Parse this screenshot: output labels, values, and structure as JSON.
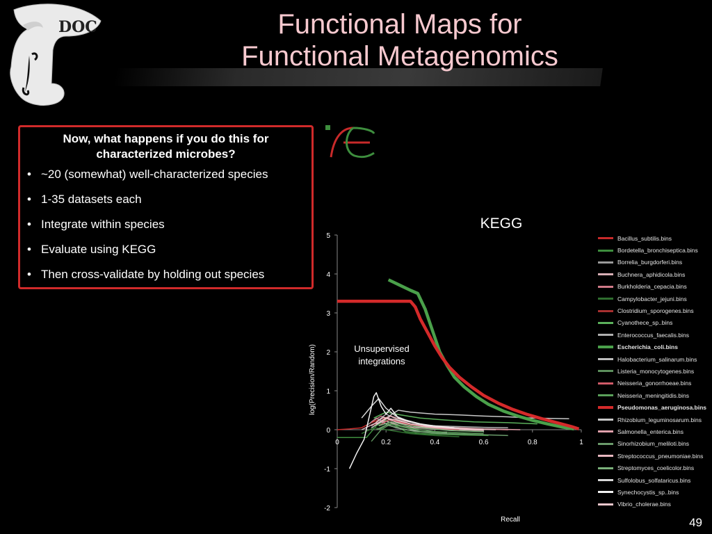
{
  "slide": {
    "title_line1": "Functional Maps for",
    "title_line2": "Functional Metagenomics",
    "page_number": "49",
    "logo_text": "DOC"
  },
  "question_box": {
    "heading": "Now, what happens if you do this for characterized microbes?",
    "bullets": [
      "~20 (somewhat) well-characterized species",
      "1-35 datasets each",
      "Integrate within species",
      "Evaluate using KEGG",
      "Then cross-validate by holding out species"
    ]
  },
  "colors": {
    "title": "#f7c9cf",
    "box_border": "#d02a2a",
    "red": "#d42a2a",
    "green": "#4aa04a"
  },
  "chart_data": {
    "type": "line",
    "title": "KEGG",
    "xlabel": "Recall",
    "ylabel": "log(Precision/Random)",
    "xlim": [
      0,
      1
    ],
    "ylim": [
      -2,
      5
    ],
    "xticks": [
      "0",
      "0.2",
      "0.4",
      "0.6",
      "0.8",
      "1"
    ],
    "yticks": [
      "5",
      "4",
      "3",
      "2",
      "1",
      "0",
      "-1",
      "-2"
    ],
    "annotation": "Unsupervised integrations",
    "series": [
      {
        "name": "Bacillus_subtilis.bins",
        "color": "#c82a2a",
        "width": 1.5,
        "x": [
          0.0,
          0.05,
          0.1,
          0.14,
          0.18,
          0.22,
          0.26,
          0.3,
          0.36,
          0.42,
          0.48,
          0.55,
          0.62,
          0.7
        ],
        "y": [
          0.0,
          0.02,
          0.05,
          0.18,
          0.28,
          0.35,
          0.2,
          0.1,
          0.08,
          0.05,
          0.03,
          0.02,
          0.01,
          0.0
        ]
      },
      {
        "name": "Bordetella_bronchiseptica.bins",
        "color": "#3e8e3e",
        "width": 1.5,
        "x": [
          0.0,
          0.12,
          0.16,
          0.2,
          0.24,
          0.28,
          0.34,
          0.42,
          0.52,
          0.62
        ],
        "y": [
          -0.2,
          -0.2,
          0.1,
          0.25,
          0.1,
          -0.05,
          -0.1,
          -0.12,
          -0.14,
          -0.15
        ]
      },
      {
        "name": "Borrelia_burgdorferi.bins",
        "color": "#9a9a9a",
        "width": 1.5,
        "x": [
          0.12,
          0.16,
          0.2,
          0.24,
          0.3,
          0.36,
          0.45
        ],
        "y": [
          0.1,
          0.3,
          0.15,
          0.05,
          -0.02,
          -0.05,
          -0.06
        ]
      },
      {
        "name": "Buchnera_aphidicola.bins",
        "color": "#d9b0b6",
        "width": 1.5,
        "x": [
          0.1,
          0.15,
          0.2,
          0.26,
          0.32,
          0.4,
          0.5,
          0.6
        ],
        "y": [
          0.0,
          0.15,
          0.22,
          0.1,
          0.05,
          0.02,
          0.0,
          -0.02
        ]
      },
      {
        "name": "Burkholderia_cepacia.bins",
        "color": "#d07a88",
        "width": 1.5,
        "x": [
          0.14,
          0.18,
          0.22,
          0.28,
          0.34,
          0.42,
          0.55,
          0.7
        ],
        "y": [
          0.2,
          0.35,
          0.25,
          0.15,
          0.08,
          0.05,
          0.02,
          0.0
        ]
      },
      {
        "name": "Campylobacter_jejuni.bins",
        "color": "#2f6e2f",
        "width": 1.5,
        "x": [
          0.1,
          0.15,
          0.2,
          0.3,
          0.4,
          0.5
        ],
        "y": [
          -0.1,
          0.05,
          0.0,
          -0.1,
          -0.15,
          -0.18
        ]
      },
      {
        "name": "Clostridium_sporogenes.bins",
        "color": "#a83030",
        "width": 1.5,
        "x": [
          0.15,
          0.2,
          0.25,
          0.3,
          0.38,
          0.48
        ],
        "y": [
          0.1,
          0.3,
          0.2,
          0.12,
          0.05,
          0.02
        ]
      },
      {
        "name": "Cyanothece_sp..bins",
        "color": "#5bb05b",
        "width": 1.5,
        "x": [
          0.15,
          0.2,
          0.26,
          0.34,
          0.44,
          0.56,
          0.7,
          0.82
        ],
        "y": [
          0.3,
          0.45,
          0.38,
          0.3,
          0.25,
          0.2,
          0.18,
          0.15
        ]
      },
      {
        "name": "Enterococcus_faecalis.bins",
        "color": "#b0b0b0",
        "width": 1.5,
        "x": [
          0.16,
          0.2,
          0.25,
          0.3,
          0.4,
          0.5,
          0.6,
          0.7
        ],
        "y": [
          0.2,
          0.4,
          0.25,
          0.15,
          0.1,
          0.08,
          0.06,
          0.05
        ]
      },
      {
        "name": "Escherichia_coli.bins",
        "color": "#4aa04a",
        "width": 4.5,
        "bold": true,
        "x": [
          0.21,
          0.26,
          0.3,
          0.33,
          0.36,
          0.39,
          0.42,
          0.45,
          0.48,
          0.52,
          0.57,
          0.62,
          0.68,
          0.74,
          0.8,
          0.86,
          0.92,
          0.97
        ],
        "y": [
          3.85,
          3.7,
          3.58,
          3.5,
          3.1,
          2.55,
          2.0,
          1.65,
          1.35,
          1.1,
          0.85,
          0.65,
          0.48,
          0.35,
          0.24,
          0.15,
          0.07,
          0.02
        ]
      },
      {
        "name": "Halobacterium_salinarum.bins",
        "color": "#bdbdbd",
        "width": 1.5,
        "x": [
          0.14,
          0.18,
          0.22,
          0.28,
          0.35,
          0.45
        ],
        "y": [
          0.05,
          0.2,
          0.1,
          0.0,
          -0.05,
          -0.08
        ]
      },
      {
        "name": "Listeria_monocytogenes.bins",
        "color": "#5c8f5c",
        "width": 1.5,
        "x": [
          0.14,
          0.18,
          0.22,
          0.28,
          0.35,
          0.45,
          0.55
        ],
        "y": [
          -0.3,
          0.0,
          0.15,
          0.05,
          -0.05,
          -0.1,
          -0.12
        ]
      },
      {
        "name": "Neisseria_gonorrhoeae.bins",
        "color": "#cf5a68",
        "width": 1.5,
        "x": [
          0.17,
          0.21,
          0.25,
          0.3,
          0.38,
          0.5
        ],
        "y": [
          0.1,
          0.25,
          0.2,
          0.1,
          0.05,
          0.0
        ]
      },
      {
        "name": "Neisseria_meningitidis.bins",
        "color": "#5aa05a",
        "width": 1.5,
        "x": [
          0.17,
          0.21,
          0.26,
          0.32,
          0.4,
          0.5,
          0.6
        ],
        "y": [
          0.0,
          0.15,
          0.1,
          0.02,
          -0.05,
          -0.08,
          -0.1
        ]
      },
      {
        "name": "Pseudomonas_aeruginosa.bins",
        "color": "#d42a2a",
        "width": 4.5,
        "bold": true,
        "x": [
          0.0,
          0.05,
          0.1,
          0.15,
          0.2,
          0.25,
          0.3,
          0.32,
          0.34,
          0.37,
          0.4,
          0.43,
          0.46,
          0.5,
          0.55,
          0.6,
          0.66,
          0.72,
          0.78,
          0.84,
          0.9,
          0.96,
          0.99
        ],
        "y": [
          3.3,
          3.3,
          3.3,
          3.3,
          3.3,
          3.3,
          3.3,
          3.15,
          2.85,
          2.5,
          2.15,
          1.85,
          1.6,
          1.35,
          1.1,
          0.88,
          0.68,
          0.52,
          0.39,
          0.28,
          0.18,
          0.08,
          0.02
        ]
      },
      {
        "name": "Rhizobium_leguminosarum.bins",
        "color": "#c8c8c8",
        "width": 1.5,
        "x": [
          0.2,
          0.25,
          0.3,
          0.4,
          0.5,
          0.6,
          0.7,
          0.8,
          0.95
        ],
        "y": [
          0.3,
          0.5,
          0.45,
          0.4,
          0.38,
          0.35,
          0.33,
          0.3,
          0.28
        ]
      },
      {
        "name": "Salmonella_enterica.bins",
        "color": "#e0a0ab",
        "width": 1.5,
        "x": [
          0.18,
          0.22,
          0.28,
          0.36,
          0.46,
          0.6,
          0.75
        ],
        "y": [
          0.2,
          0.35,
          0.22,
          0.12,
          0.06,
          0.02,
          0.0
        ]
      },
      {
        "name": "Sinorhizobium_meliloti.bins",
        "color": "#6a9a6a",
        "width": 1.5,
        "x": [
          0.16,
          0.2,
          0.25,
          0.32,
          0.42,
          0.55,
          0.7
        ],
        "y": [
          0.0,
          0.12,
          0.05,
          -0.05,
          -0.1,
          -0.12,
          -0.15
        ]
      },
      {
        "name": "Streptococcus_pneumoniae.bins",
        "color": "#e8b8c0",
        "width": 1.5,
        "x": [
          0.14,
          0.19,
          0.24,
          0.3,
          0.4,
          0.5,
          0.65
        ],
        "y": [
          0.1,
          0.32,
          0.2,
          0.1,
          0.05,
          0.02,
          0.0
        ]
      },
      {
        "name": "Streptomyces_coelicolor.bins",
        "color": "#7ab07a",
        "width": 1.5,
        "x": [
          0.17,
          0.22,
          0.28,
          0.36,
          0.46,
          0.6
        ],
        "y": [
          0.1,
          0.2,
          0.12,
          0.04,
          -0.02,
          -0.05
        ]
      },
      {
        "name": "Sulfolobus_solfataricus.bins",
        "color": "#d8d8d8",
        "width": 1.5,
        "x": [
          0.1,
          0.14,
          0.17,
          0.2,
          0.24,
          0.28,
          0.34,
          0.42,
          0.5
        ],
        "y": [
          0.3,
          0.6,
          0.8,
          0.55,
          0.35,
          0.25,
          0.15,
          0.08,
          0.04
        ]
      },
      {
        "name": "Synechocystis_sp..bins",
        "color": "#f2f2f2",
        "width": 1.5,
        "x": [
          0.05,
          0.08,
          0.11,
          0.13,
          0.15,
          0.16,
          0.18,
          0.2,
          0.22,
          0.25,
          0.3,
          0.38,
          0.48
        ],
        "y": [
          -1.0,
          -0.6,
          -0.25,
          0.3,
          0.85,
          0.95,
          0.6,
          0.4,
          0.55,
          0.3,
          0.2,
          0.1,
          0.05
        ]
      },
      {
        "name": "Vibrio_cholerae.bins",
        "color": "#f0c8ce",
        "width": 1.5,
        "x": [
          0.16,
          0.2,
          0.24,
          0.3,
          0.38,
          0.48,
          0.6
        ],
        "y": [
          0.15,
          0.3,
          0.25,
          0.15,
          0.08,
          0.03,
          0.0
        ]
      }
    ]
  }
}
